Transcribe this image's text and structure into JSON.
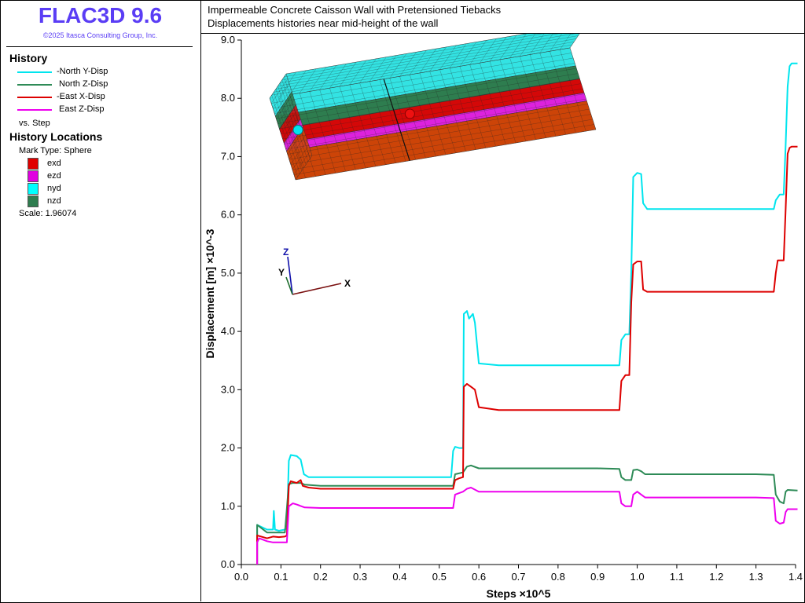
{
  "app": {
    "name": "FLAC3D 9.6",
    "copyright": "©2025 Itasca Consulting Group, Inc."
  },
  "plot_titles": {
    "line1": "Impermeable Concrete Caisson Wall with Pretensioned Tiebacks",
    "line2": "Displacements histories near mid-height of the wall"
  },
  "legend": {
    "history_heading": "History",
    "histories": [
      {
        "label": "-North Y-Disp",
        "color": "#00e5ee"
      },
      {
        "label": "North Z-Disp",
        "color": "#2e8b57"
      },
      {
        "label": "-East X-Disp",
        "color": "#dd0000"
      },
      {
        "label": "East Z-Disp",
        "color": "#ee00ee"
      }
    ],
    "vs": "vs. Step",
    "locations_heading": "History Locations",
    "mark_type": "Mark Type: Sphere",
    "locations": [
      {
        "label": "exd",
        "color": "#e00000"
      },
      {
        "label": "ezd",
        "color": "#e000e0"
      },
      {
        "label": "nyd",
        "color": "#00ffff"
      },
      {
        "label": "nzd",
        "color": "#2e7d4f"
      }
    ],
    "scale": "Scale: 1.96074"
  },
  "model_view": {
    "axis_x": "X",
    "axis_y": "Y",
    "axis_z": "Z",
    "layer_colors": [
      "#33e3e3",
      "#2e7d4f",
      "#d40808",
      "#dd22dd",
      "#cc4408"
    ],
    "marker_colors": [
      "#00e5ee",
      "#ee1111"
    ]
  },
  "chart_data": {
    "type": "line",
    "xlabel": "Steps ×10^5",
    "ylabel": "Displacement [m] ×10^-3",
    "xlim": [
      0.0,
      1.4
    ],
    "ylim": [
      0.0,
      9.0
    ],
    "x_ticks": [
      "0.0",
      "0.1",
      "0.2",
      "0.3",
      "0.4",
      "0.5",
      "0.6",
      "0.7",
      "0.8",
      "0.9",
      "1.0",
      "1.1",
      "1.2",
      "1.3",
      "1.4"
    ],
    "y_ticks": [
      "0.0",
      "1.0",
      "2.0",
      "3.0",
      "4.0",
      "5.0",
      "6.0",
      "7.0",
      "8.0",
      "9.0"
    ],
    "grid": false,
    "series": [
      {
        "name": "-North Y-Disp",
        "color": "#00e5ee",
        "points": [
          [
            0.04,
            0.0
          ],
          [
            0.04,
            0.68
          ],
          [
            0.065,
            0.6
          ],
          [
            0.08,
            0.6
          ],
          [
            0.082,
            0.92
          ],
          [
            0.085,
            0.6
          ],
          [
            0.095,
            0.58
          ],
          [
            0.11,
            0.6
          ],
          [
            0.115,
            0.62
          ],
          [
            0.12,
            1.78
          ],
          [
            0.125,
            1.88
          ],
          [
            0.14,
            1.86
          ],
          [
            0.15,
            1.8
          ],
          [
            0.158,
            1.55
          ],
          [
            0.17,
            1.5
          ],
          [
            0.2,
            1.5
          ],
          [
            0.3,
            1.5
          ],
          [
            0.4,
            1.5
          ],
          [
            0.5,
            1.5
          ],
          [
            0.53,
            1.5
          ],
          [
            0.535,
            1.95
          ],
          [
            0.54,
            2.02
          ],
          [
            0.55,
            2.0
          ],
          [
            0.56,
            2.0
          ],
          [
            0.562,
            4.3
          ],
          [
            0.57,
            4.35
          ],
          [
            0.575,
            4.22
          ],
          [
            0.585,
            4.3
          ],
          [
            0.59,
            4.15
          ],
          [
            0.6,
            3.45
          ],
          [
            0.65,
            3.42
          ],
          [
            0.7,
            3.42
          ],
          [
            0.8,
            3.42
          ],
          [
            0.9,
            3.42
          ],
          [
            0.955,
            3.42
          ],
          [
            0.96,
            3.85
          ],
          [
            0.97,
            3.95
          ],
          [
            0.98,
            3.95
          ],
          [
            0.985,
            5.0
          ],
          [
            0.99,
            6.65
          ],
          [
            1.0,
            6.72
          ],
          [
            1.01,
            6.7
          ],
          [
            1.015,
            6.2
          ],
          [
            1.025,
            6.1
          ],
          [
            1.1,
            6.1
          ],
          [
            1.2,
            6.1
          ],
          [
            1.3,
            6.1
          ],
          [
            1.345,
            6.1
          ],
          [
            1.35,
            6.25
          ],
          [
            1.36,
            6.35
          ],
          [
            1.37,
            6.35
          ],
          [
            1.375,
            7.2
          ],
          [
            1.38,
            8.2
          ],
          [
            1.385,
            8.55
          ],
          [
            1.39,
            8.6
          ],
          [
            1.405,
            8.6
          ]
        ]
      },
      {
        "name": "North Z-Disp",
        "color": "#2e8b57",
        "points": [
          [
            0.04,
            0.0
          ],
          [
            0.04,
            0.68
          ],
          [
            0.065,
            0.55
          ],
          [
            0.08,
            0.55
          ],
          [
            0.095,
            0.55
          ],
          [
            0.11,
            0.55
          ],
          [
            0.12,
            1.38
          ],
          [
            0.13,
            1.4
          ],
          [
            0.15,
            1.4
          ],
          [
            0.16,
            1.37
          ],
          [
            0.2,
            1.35
          ],
          [
            0.3,
            1.35
          ],
          [
            0.4,
            1.35
          ],
          [
            0.5,
            1.35
          ],
          [
            0.535,
            1.35
          ],
          [
            0.54,
            1.55
          ],
          [
            0.56,
            1.58
          ],
          [
            0.57,
            1.68
          ],
          [
            0.58,
            1.7
          ],
          [
            0.6,
            1.65
          ],
          [
            0.7,
            1.65
          ],
          [
            0.8,
            1.65
          ],
          [
            0.9,
            1.65
          ],
          [
            0.955,
            1.64
          ],
          [
            0.96,
            1.5
          ],
          [
            0.97,
            1.45
          ],
          [
            0.985,
            1.45
          ],
          [
            0.99,
            1.62
          ],
          [
            1.0,
            1.63
          ],
          [
            1.01,
            1.6
          ],
          [
            1.02,
            1.55
          ],
          [
            1.1,
            1.55
          ],
          [
            1.2,
            1.55
          ],
          [
            1.3,
            1.55
          ],
          [
            1.345,
            1.54
          ],
          [
            1.35,
            1.2
          ],
          [
            1.36,
            1.08
          ],
          [
            1.37,
            1.05
          ],
          [
            1.375,
            1.25
          ],
          [
            1.38,
            1.28
          ],
          [
            1.405,
            1.27
          ]
        ]
      },
      {
        "name": "-East X-Disp",
        "color": "#dd0000",
        "points": [
          [
            0.04,
            0.0
          ],
          [
            0.04,
            0.5
          ],
          [
            0.065,
            0.45
          ],
          [
            0.08,
            0.48
          ],
          [
            0.095,
            0.47
          ],
          [
            0.11,
            0.48
          ],
          [
            0.115,
            0.5
          ],
          [
            0.12,
            1.35
          ],
          [
            0.125,
            1.43
          ],
          [
            0.14,
            1.4
          ],
          [
            0.15,
            1.45
          ],
          [
            0.155,
            1.35
          ],
          [
            0.17,
            1.32
          ],
          [
            0.2,
            1.3
          ],
          [
            0.3,
            1.3
          ],
          [
            0.4,
            1.3
          ],
          [
            0.5,
            1.3
          ],
          [
            0.535,
            1.3
          ],
          [
            0.54,
            1.45
          ],
          [
            0.55,
            1.48
          ],
          [
            0.56,
            1.5
          ],
          [
            0.562,
            3.05
          ],
          [
            0.57,
            3.1
          ],
          [
            0.58,
            3.05
          ],
          [
            0.59,
            3.0
          ],
          [
            0.6,
            2.7
          ],
          [
            0.65,
            2.65
          ],
          [
            0.7,
            2.65
          ],
          [
            0.8,
            2.65
          ],
          [
            0.9,
            2.65
          ],
          [
            0.955,
            2.65
          ],
          [
            0.96,
            3.15
          ],
          [
            0.97,
            3.25
          ],
          [
            0.98,
            3.25
          ],
          [
            0.985,
            4.5
          ],
          [
            0.99,
            5.15
          ],
          [
            1.0,
            5.2
          ],
          [
            1.01,
            5.2
          ],
          [
            1.015,
            4.72
          ],
          [
            1.025,
            4.68
          ],
          [
            1.1,
            4.68
          ],
          [
            1.2,
            4.68
          ],
          [
            1.3,
            4.68
          ],
          [
            1.345,
            4.68
          ],
          [
            1.35,
            5.0
          ],
          [
            1.355,
            5.22
          ],
          [
            1.37,
            5.22
          ],
          [
            1.375,
            6.1
          ],
          [
            1.38,
            7.05
          ],
          [
            1.385,
            7.15
          ],
          [
            1.39,
            7.17
          ],
          [
            1.405,
            7.17
          ]
        ]
      },
      {
        "name": "East Z-Disp",
        "color": "#ee00ee",
        "points": [
          [
            0.04,
            0.0
          ],
          [
            0.04,
            0.38
          ],
          [
            0.045,
            0.45
          ],
          [
            0.065,
            0.4
          ],
          [
            0.08,
            0.38
          ],
          [
            0.1,
            0.38
          ],
          [
            0.115,
            0.38
          ],
          [
            0.12,
            1.0
          ],
          [
            0.13,
            1.05
          ],
          [
            0.14,
            1.03
          ],
          [
            0.16,
            0.98
          ],
          [
            0.2,
            0.97
          ],
          [
            0.3,
            0.97
          ],
          [
            0.4,
            0.97
          ],
          [
            0.5,
            0.97
          ],
          [
            0.535,
            0.97
          ],
          [
            0.54,
            1.2
          ],
          [
            0.56,
            1.25
          ],
          [
            0.57,
            1.3
          ],
          [
            0.58,
            1.32
          ],
          [
            0.6,
            1.25
          ],
          [
            0.7,
            1.25
          ],
          [
            0.8,
            1.25
          ],
          [
            0.9,
            1.25
          ],
          [
            0.955,
            1.25
          ],
          [
            0.96,
            1.05
          ],
          [
            0.97,
            1.0
          ],
          [
            0.985,
            1.0
          ],
          [
            0.99,
            1.2
          ],
          [
            1.0,
            1.25
          ],
          [
            1.01,
            1.2
          ],
          [
            1.02,
            1.15
          ],
          [
            1.1,
            1.15
          ],
          [
            1.2,
            1.15
          ],
          [
            1.3,
            1.15
          ],
          [
            1.345,
            1.14
          ],
          [
            1.35,
            0.75
          ],
          [
            1.36,
            0.7
          ],
          [
            1.37,
            0.72
          ],
          [
            1.375,
            0.9
          ],
          [
            1.38,
            0.95
          ],
          [
            1.405,
            0.95
          ]
        ]
      }
    ]
  }
}
